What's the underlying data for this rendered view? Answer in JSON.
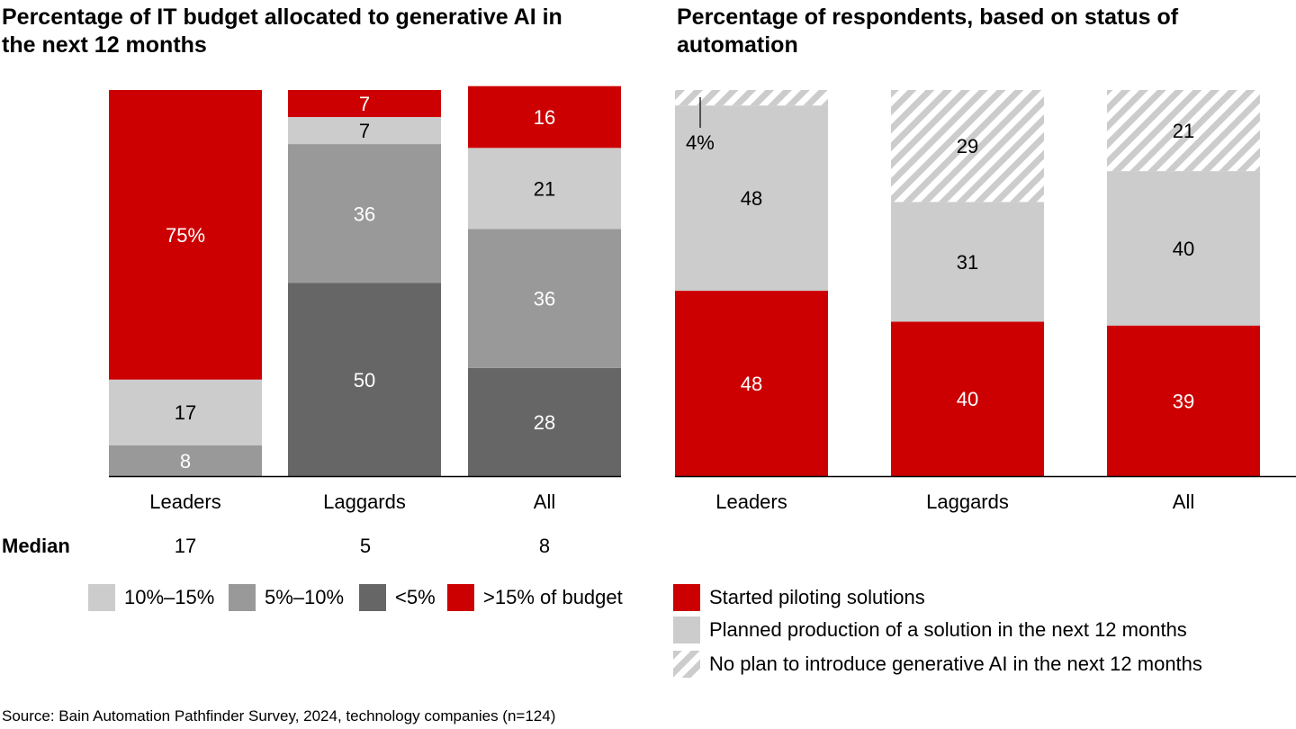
{
  "left_chart": {
    "title": "Percentage of IT budget allocated to generative AI in the next 12 months",
    "median_label": "Median",
    "medians": [
      "17",
      "5",
      "8"
    ],
    "legend": [
      {
        "label": "10%–15%",
        "color": "#cccccc"
      },
      {
        "label": "5%–10%",
        "color": "#999999"
      },
      {
        "label": "<5%",
        "color": "#666666"
      },
      {
        "label": ">15% of budget",
        "color": "#cc0000"
      }
    ]
  },
  "right_chart": {
    "title": "Percentage of respondents, based on status of automation",
    "legend": [
      {
        "label": "Started piloting solutions",
        "color": "#cc0000"
      },
      {
        "label": "Planned production of a solution in the next 12 months",
        "color": "#cccccc"
      },
      {
        "label": "No plan to introduce generative AI in the next 12 months",
        "color": "hatch"
      }
    ]
  },
  "source": "Source: Bain Automation Pathfinder Survey, 2024, technology companies (n=124)",
  "chart_data": [
    {
      "type": "bar",
      "stacked": true,
      "title": "Percentage of IT budget allocated to generative AI in the next 12 months",
      "categories": [
        "Leaders",
        "Laggards",
        "All"
      ],
      "ylim": [
        0,
        100
      ],
      "series": [
        {
          "name": "<5%",
          "color": "#666666",
          "values": [
            0,
            50,
            28
          ],
          "labels": [
            "",
            "50",
            "28"
          ]
        },
        {
          "name": "5%–10%",
          "color": "#999999",
          "values": [
            8,
            36,
            36
          ],
          "labels": [
            "8",
            "36",
            "36"
          ]
        },
        {
          "name": "10%–15%",
          "color": "#cccccc",
          "values": [
            17,
            7,
            21
          ],
          "labels": [
            "17",
            "7",
            "21"
          ]
        },
        {
          "name": ">15% of budget",
          "color": "#cc0000",
          "values": [
            75,
            7,
            16
          ],
          "labels": [
            "75%",
            "7",
            "16"
          ]
        }
      ]
    },
    {
      "type": "bar",
      "stacked": true,
      "title": "Percentage of respondents, based on status of automation",
      "categories": [
        "Leaders",
        "Laggards",
        "All"
      ],
      "ylim": [
        0,
        100
      ],
      "series": [
        {
          "name": "Started piloting solutions",
          "color": "#cc0000",
          "values": [
            48,
            40,
            39
          ],
          "labels": [
            "48",
            "40",
            "39"
          ]
        },
        {
          "name": "Planned production of a solution in the next 12 months",
          "color": "#cccccc",
          "values": [
            48,
            31,
            40
          ],
          "labels": [
            "48",
            "31",
            "40"
          ]
        },
        {
          "name": "No plan to introduce generative AI in the next 12 months",
          "color": "hatch",
          "values": [
            4,
            29,
            21
          ],
          "labels": [
            "4%",
            "29",
            "21"
          ]
        }
      ]
    }
  ]
}
